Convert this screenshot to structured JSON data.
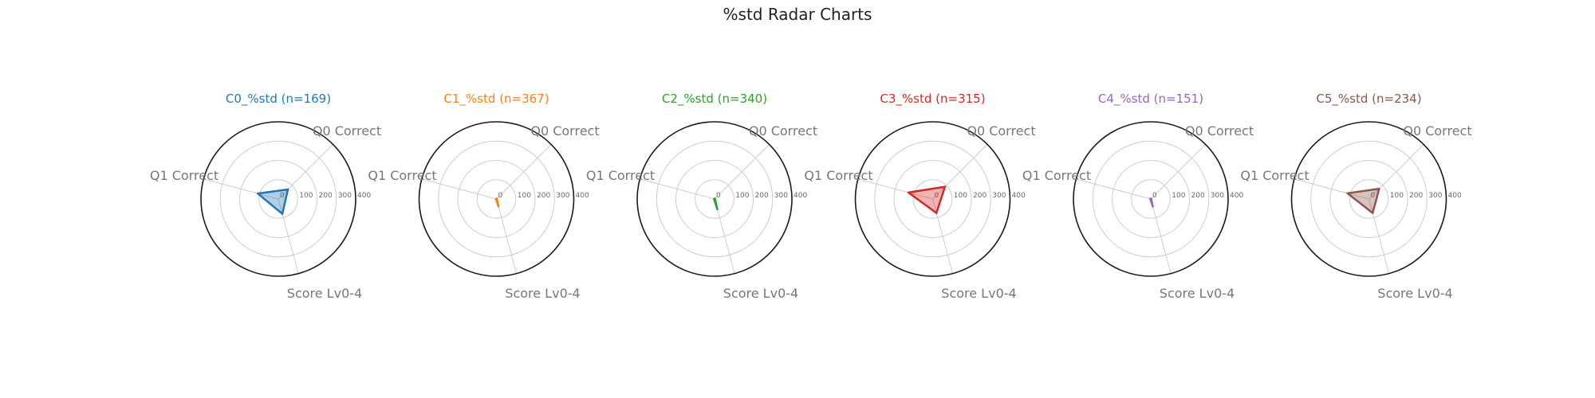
{
  "title": "%std Radar Charts",
  "chart_data": [
    {
      "type": "radar",
      "title": "C0_%std (n=169)",
      "color": "#1f77b4",
      "axes": [
        "Q0 Correct",
        "Q1 Correct",
        "Score Lv0-4"
      ],
      "values": [
        70,
        110,
        80
      ],
      "rlim": [
        0,
        400
      ],
      "rticks": [
        "0",
        "100",
        "200",
        "300",
        "400"
      ]
    },
    {
      "type": "radar",
      "title": "C1_%std (n=367)",
      "color": "#ff7f0e",
      "axes": [
        "Q0 Correct",
        "Q1 Correct",
        "Score Lv0-4"
      ],
      "values": [
        3,
        3,
        40
      ],
      "rlim": [
        0,
        400
      ],
      "rticks": [
        "0",
        "100",
        "200",
        "300",
        "400"
      ]
    },
    {
      "type": "radar",
      "title": "C2_%std (n=340)",
      "color": "#2ca02c",
      "axes": [
        "Q0 Correct",
        "Q1 Correct",
        "Score Lv0-4"
      ],
      "values": [
        3,
        3,
        55
      ],
      "rlim": [
        0,
        400
      ],
      "rticks": [
        "0",
        "100",
        "200",
        "300",
        "400"
      ]
    },
    {
      "type": "radar",
      "title": "C3_%std (n=315)",
      "color": "#d62728",
      "axes": [
        "Q0 Correct",
        "Q1 Correct",
        "Score Lv0-4"
      ],
      "values": [
        90,
        130,
        75
      ],
      "rlim": [
        0,
        400
      ],
      "rticks": [
        "0",
        "100",
        "200",
        "300",
        "400"
      ]
    },
    {
      "type": "radar",
      "title": "C4_%std (n=151)",
      "color": "#9467bd",
      "axes": [
        "Q0 Correct",
        "Q1 Correct",
        "Score Lv0-4"
      ],
      "values": [
        3,
        3,
        40
      ],
      "rlim": [
        0,
        400
      ],
      "rticks": [
        "0",
        "100",
        "200",
        "300",
        "400"
      ]
    },
    {
      "type": "radar",
      "title": "C5_%std (n=234)",
      "color": "#8c564b",
      "axes": [
        "Q0 Correct",
        "Q1 Correct",
        "Score Lv0-4"
      ],
      "values": [
        75,
        115,
        75
      ],
      "rlim": [
        0,
        400
      ],
      "rticks": [
        "0",
        "100",
        "200",
        "300",
        "400"
      ]
    }
  ]
}
